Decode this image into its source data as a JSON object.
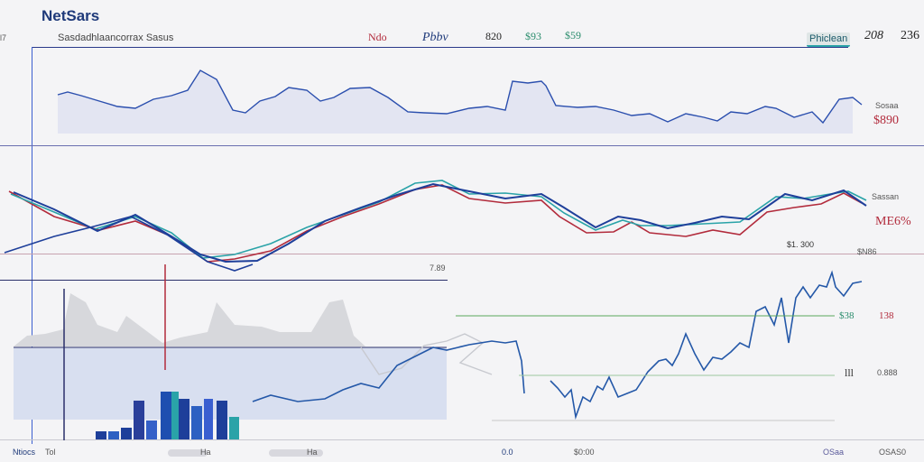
{
  "app": {
    "title": "NetSars"
  },
  "header": {
    "left_label": "Sasdadhlaancorrax Sasus",
    "left_tag": "l7",
    "tabs": [
      "Ndo",
      "Pbbv",
      "820",
      "$93",
      "$59"
    ],
    "right_badge": "Phiclean",
    "right_value1": "208",
    "right_value2": "236"
  },
  "panel1": {
    "label_top": "Sosaa",
    "label_value": "$890",
    "colors": {
      "fill": "#e3e5f2",
      "line": "#2b4fae"
    }
  },
  "panel2": {
    "label_top": "Sassan",
    "label_value": "ME6%",
    "mid_label": "$1. 300",
    "colors": {
      "blue": "#1e3f9a",
      "red": "#b22b3c",
      "teal": "#2aa3a8"
    }
  },
  "panel3": {
    "marker_label": "7.89",
    "right_label_top": "$N86",
    "right_label_green": "$38",
    "right_label_red": "138",
    "right_label_mid": "lll",
    "right_label_mid2": "0.888",
    "colors": {
      "blue": "#2458a8",
      "green": "#5aa85c"
    }
  },
  "footer": {
    "items": [
      "Ntiocs",
      "Tol",
      "Ha",
      "Ha",
      "0.0",
      "$0:00",
      "OSaa",
      "OSAS0"
    ]
  }
}
